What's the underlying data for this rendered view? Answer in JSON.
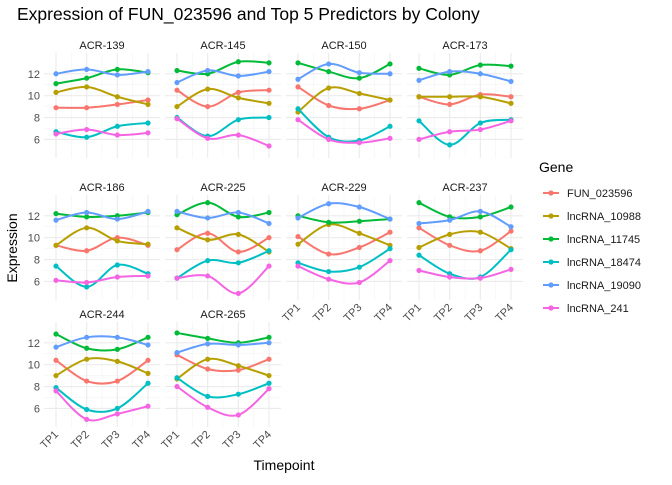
{
  "chart_data": {
    "type": "line",
    "title": "Expression of FUN_023596 and Top 5 Predictors by Colony",
    "xlabel": "Timepoint",
    "ylabel": "Expression",
    "x": [
      "TP1",
      "TP2",
      "TP3",
      "TP4"
    ],
    "y_ticks": [
      6,
      8,
      10,
      12
    ],
    "ylim": [
      4.3,
      13.9
    ],
    "grid": true,
    "legend_title": "Gene",
    "legend_position": "right",
    "colors": {
      "FUN_023596": "#F8766D",
      "lncRNA_10988": "#B79F00",
      "lncRNA_11745": "#00BA38",
      "lncRNA_18474": "#00BFC4",
      "lncRNA_19090": "#619CFF",
      "lncRNA_241": "#F564E3"
    },
    "genes": [
      "FUN_023596",
      "lncRNA_10988",
      "lncRNA_11745",
      "lncRNA_18474",
      "lncRNA_19090",
      "lncRNA_241"
    ],
    "panels": [
      {
        "name": "ACR-139",
        "series": {
          "FUN_023596": [
            8.9,
            8.9,
            9.2,
            9.6
          ],
          "lncRNA_10988": [
            10.3,
            10.8,
            9.9,
            9.2
          ],
          "lncRNA_11745": [
            11.1,
            11.6,
            12.4,
            12.1
          ],
          "lncRNA_18474": [
            6.7,
            6.2,
            7.2,
            7.5
          ],
          "lncRNA_19090": [
            12.0,
            12.4,
            11.9,
            12.2
          ],
          "lncRNA_241": [
            6.5,
            6.9,
            6.4,
            6.6
          ]
        }
      },
      {
        "name": "ACR-145",
        "series": {
          "FUN_023596": [
            10.5,
            9.0,
            10.3,
            10.5
          ],
          "lncRNA_10988": [
            9.0,
            10.6,
            9.8,
            9.3
          ],
          "lncRNA_11745": [
            12.3,
            12.0,
            13.1,
            13.0
          ],
          "lncRNA_18474": [
            8.0,
            6.3,
            7.8,
            8.0
          ],
          "lncRNA_19090": [
            11.2,
            12.3,
            11.8,
            12.2
          ],
          "lncRNA_241": [
            7.9,
            6.1,
            6.4,
            5.4
          ]
        }
      },
      {
        "name": "ACR-150",
        "series": {
          "FUN_023596": [
            10.8,
            9.1,
            8.8,
            9.6
          ],
          "lncRNA_10988": [
            8.5,
            10.7,
            10.2,
            9.6
          ],
          "lncRNA_11745": [
            13.0,
            12.2,
            11.6,
            12.9
          ],
          "lncRNA_18474": [
            8.8,
            6.2,
            5.9,
            7.2
          ],
          "lncRNA_19090": [
            11.5,
            12.9,
            12.1,
            12.0
          ],
          "lncRNA_241": [
            7.8,
            6.0,
            5.7,
            6.1
          ]
        }
      },
      {
        "name": "ACR-173",
        "series": {
          "FUN_023596": [
            9.9,
            9.2,
            10.1,
            9.9
          ],
          "lncRNA_10988": [
            9.9,
            9.9,
            9.9,
            9.3
          ],
          "lncRNA_11745": [
            12.5,
            11.9,
            12.8,
            12.7
          ],
          "lncRNA_18474": [
            7.7,
            5.5,
            7.5,
            7.8
          ],
          "lncRNA_19090": [
            11.4,
            12.2,
            12.0,
            11.3
          ],
          "lncRNA_241": [
            6.0,
            6.7,
            6.9,
            7.7
          ]
        }
      },
      {
        "name": "ACR-186",
        "series": {
          "FUN_023596": [
            9.3,
            8.8,
            10.0,
            9.3
          ],
          "lncRNA_10988": [
            9.3,
            10.9,
            9.7,
            9.4
          ],
          "lncRNA_11745": [
            12.2,
            11.9,
            12.0,
            12.3
          ],
          "lncRNA_18474": [
            7.4,
            5.5,
            7.5,
            6.7
          ],
          "lncRNA_19090": [
            11.6,
            12.3,
            11.7,
            12.4
          ],
          "lncRNA_241": [
            6.1,
            5.9,
            6.4,
            6.5
          ]
        }
      },
      {
        "name": "ACR-225",
        "series": {
          "FUN_023596": [
            8.9,
            10.4,
            8.7,
            10.0
          ],
          "lncRNA_10988": [
            10.9,
            9.8,
            10.3,
            8.7
          ],
          "lncRNA_11745": [
            12.1,
            13.2,
            11.9,
            12.3
          ],
          "lncRNA_18474": [
            6.3,
            7.9,
            7.7,
            8.8
          ],
          "lncRNA_19090": [
            12.4,
            11.8,
            12.3,
            11.3
          ],
          "lncRNA_241": [
            6.3,
            6.5,
            4.9,
            7.4
          ]
        }
      },
      {
        "name": "ACR-229",
        "series": {
          "FUN_023596": [
            10.1,
            8.5,
            9.1,
            10.5
          ],
          "lncRNA_10988": [
            9.4,
            11.2,
            10.4,
            9.3
          ],
          "lncRNA_11745": [
            12.0,
            11.4,
            11.5,
            11.7
          ],
          "lncRNA_18474": [
            7.7,
            6.9,
            7.3,
            9.0
          ],
          "lncRNA_19090": [
            11.8,
            13.1,
            12.8,
            11.7
          ],
          "lncRNA_241": [
            7.4,
            6.2,
            5.9,
            7.9
          ]
        }
      },
      {
        "name": "ACR-237",
        "series": {
          "FUN_023596": [
            10.9,
            9.3,
            8.8,
            10.6
          ],
          "lncRNA_10988": [
            9.1,
            10.3,
            10.5,
            9.0
          ],
          "lncRNA_11745": [
            13.2,
            11.9,
            11.9,
            12.8
          ],
          "lncRNA_18474": [
            8.4,
            6.7,
            6.4,
            8.9
          ],
          "lncRNA_19090": [
            11.3,
            11.6,
            12.4,
            11.0
          ],
          "lncRNA_241": [
            7.0,
            6.4,
            6.3,
            7.1
          ]
        }
      },
      {
        "name": "ACR-244",
        "series": {
          "FUN_023596": [
            10.4,
            8.5,
            8.5,
            10.4
          ],
          "lncRNA_10988": [
            9.0,
            10.5,
            10.3,
            9.2
          ],
          "lncRNA_11745": [
            12.8,
            11.5,
            11.4,
            12.5
          ],
          "lncRNA_18474": [
            7.9,
            5.9,
            6.0,
            8.3
          ],
          "lncRNA_19090": [
            11.6,
            12.5,
            12.5,
            11.8
          ],
          "lncRNA_241": [
            7.6,
            5.0,
            5.5,
            6.2
          ]
        }
      },
      {
        "name": "ACR-265",
        "series": {
          "FUN_023596": [
            10.9,
            9.6,
            9.5,
            10.5
          ],
          "lncRNA_10988": [
            8.7,
            10.5,
            9.9,
            9.0
          ],
          "lncRNA_11745": [
            12.9,
            12.4,
            12.0,
            12.5
          ],
          "lncRNA_18474": [
            8.8,
            7.1,
            7.3,
            8.3
          ],
          "lncRNA_19090": [
            11.1,
            11.9,
            11.8,
            12.0
          ],
          "lncRNA_241": [
            8.0,
            6.1,
            5.4,
            7.8
          ]
        }
      }
    ]
  }
}
